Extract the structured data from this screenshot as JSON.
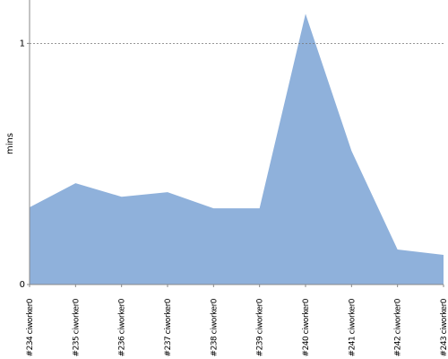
{
  "chart_data": {
    "type": "area",
    "y_label": "mins",
    "categories": [
      "#234 ciworker0",
      "#235 ciworker0",
      "#236 ciworker0",
      "#237 ciworker0",
      "#238 ciworker0",
      "#239 ciworker0",
      "#240 ciworker0",
      "#241 ciworker0",
      "#242 ciworker0",
      "#243 ciworker0"
    ],
    "values": [
      0.32,
      0.42,
      0.364,
      0.383,
      0.316,
      0.316,
      1.123,
      0.554,
      0.145,
      0.123
    ],
    "color": "#8fb1db",
    "ylim": [
      0,
      1.18
    ],
    "yticks": [
      0,
      1
    ],
    "grid": true
  }
}
